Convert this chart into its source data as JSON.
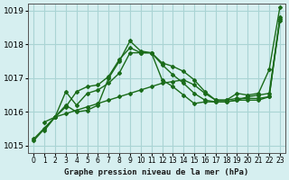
{
  "title": "Graphe pression niveau de la mer (hPa)",
  "x_labels": [
    "0",
    "1",
    "2",
    "3",
    "4",
    "5",
    "6",
    "7",
    "8",
    "9",
    "10",
    "11",
    "12",
    "13",
    "14",
    "15",
    "16",
    "17",
    "18",
    "19",
    "20",
    "21",
    "22",
    "23"
  ],
  "ylim": [
    1014.8,
    1019.2
  ],
  "xlim": [
    -0.5,
    23.5
  ],
  "yticks": [
    1015,
    1016,
    1017,
    1018,
    1019
  ],
  "bg_color": "#d6eff0",
  "grid_color": "#aad4d4",
  "line_color": "#1a6b1a",
  "line1": [
    1015.2,
    null,
    1015.85,
    1015.95,
    1016.05,
    1016.15,
    1016.25,
    1016.35,
    1016.45,
    1016.55,
    1016.65,
    1016.75,
    1016.85,
    1016.9,
    1016.95,
    1016.8,
    1016.55,
    1016.35,
    1016.35,
    1016.4,
    1016.4,
    1016.4,
    1016.45,
    1018.7
  ],
  "line2": [
    null,
    1015.7,
    1015.85,
    1016.15,
    1016.6,
    1016.75,
    1016.8,
    1017.05,
    1017.55,
    1017.9,
    1017.75,
    1017.75,
    1017.45,
    1017.35,
    1017.2,
    1016.95,
    1016.6,
    1016.35,
    1016.35,
    1016.55,
    1016.5,
    1016.55,
    1017.25,
    1019.1
  ],
  "line3": [
    1015.15,
    1015.5,
    1015.85,
    1016.2,
    1016.0,
    1016.05,
    1016.2,
    1017.0,
    1017.5,
    1018.1,
    1017.8,
    1017.75,
    1017.4,
    1017.1,
    1016.85,
    1016.55,
    1016.35,
    1016.3,
    1016.3,
    1016.35,
    1016.35,
    1016.35,
    1016.45,
    1018.8
  ],
  "line4": [
    null,
    1015.45,
    1015.85,
    1016.6,
    1016.2,
    1016.55,
    1016.65,
    1016.85,
    1017.15,
    1017.75,
    1017.75,
    1017.75,
    1016.95,
    1016.75,
    1016.5,
    1016.25,
    1016.3,
    1016.3,
    1016.3,
    1016.35,
    1016.45,
    1016.5,
    1016.55,
    1018.75
  ]
}
